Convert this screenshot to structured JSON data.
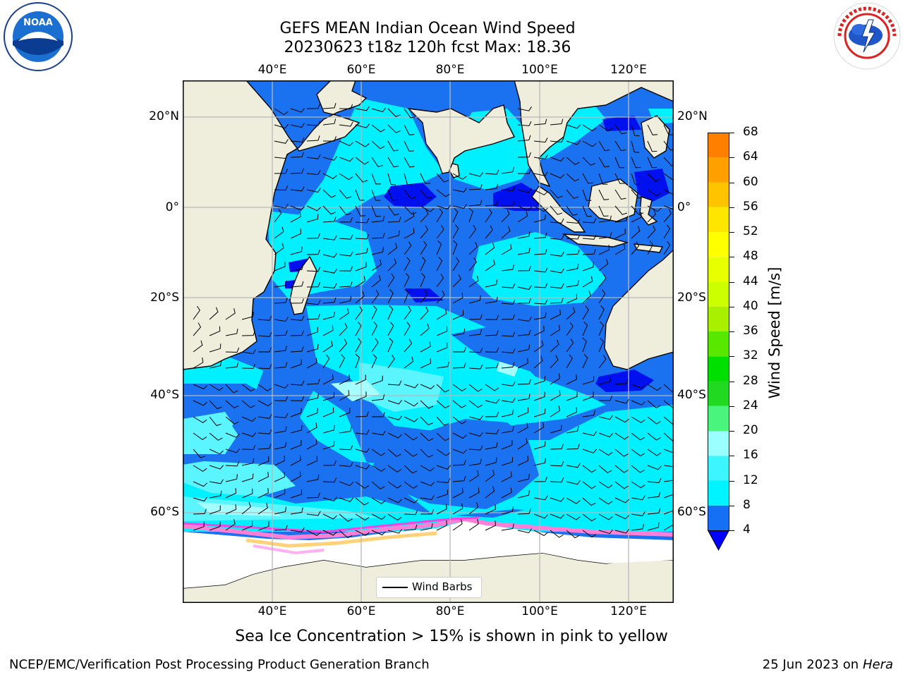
{
  "title": {
    "line1": "GEFS MEAN Indian Ocean Wind Speed",
    "line2": "20230623 t18z 120h fcst   Max: 18.36"
  },
  "logos": {
    "left": {
      "icon": "noaa-logo",
      "text": "NOAA"
    },
    "right": {
      "icon": "nws-logo",
      "text": "NATIONAL WEATHER SERVICE"
    }
  },
  "map": {
    "lon_labels": [
      "40°E",
      "60°E",
      "80°E",
      "100°E",
      "120°E"
    ],
    "lat_labels": [
      "20°N",
      "0°",
      "20°S",
      "40°S",
      "60°S"
    ],
    "lon_range": [
      20,
      130
    ],
    "lat_range": [
      -72,
      27
    ],
    "colors": {
      "land": "#efeedd",
      "ocean_base": "#1a72f0"
    }
  },
  "colorbar": {
    "label": "Wind Speed [m/s]",
    "ticks": [
      "68",
      "64",
      "60",
      "56",
      "52",
      "48",
      "44",
      "40",
      "36",
      "32",
      "28",
      "24",
      "20",
      "16",
      "12",
      "8",
      "4"
    ],
    "colors": [
      "#0000ff",
      "#1670f5",
      "#00f4ff",
      "#3df5ff",
      "#9bffff",
      "#49f57a",
      "#20d920",
      "#00e000",
      "#58e800",
      "#a8f000",
      "#ccff00",
      "#e8ff00",
      "#ffff00",
      "#ffe600",
      "#ffc400",
      "#ffa000",
      "#ff8000",
      "#ff5a00",
      "#ff3000",
      "#ff0000"
    ]
  },
  "legend": {
    "label": "Wind Barbs"
  },
  "footer": {
    "note": "Sea Ice Concentration > 15% is shown in pink to yellow",
    "left": "NCEP/EMC/Verification Post Processing Product Generation Branch",
    "date": "25 Jun 2023 on",
    "host": "Hera"
  }
}
